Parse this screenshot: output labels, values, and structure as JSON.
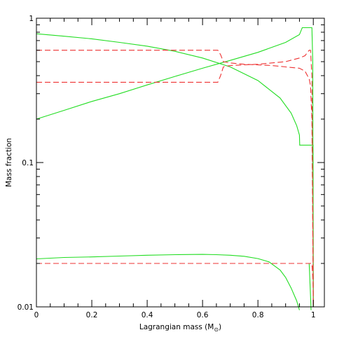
{
  "chart_data": {
    "type": "line",
    "title": "",
    "xlabel": "Lagrangian mass (M",
    "xlabel_sub": "⊙",
    "xlabel_close": ")",
    "ylabel": "Mass fraction",
    "xlim": [
      0,
      1.04
    ],
    "ylim": [
      0.01,
      1
    ],
    "yscale": "log",
    "grid": false,
    "legend": "none",
    "xticks": [
      0,
      0.2,
      0.4,
      0.6,
      0.8,
      1
    ],
    "xtick_labels": [
      "0",
      "0.2",
      "0.4",
      "0.6",
      "0.8",
      "1"
    ],
    "yticks": [
      0.01,
      0.1,
      1
    ],
    "ytick_labels": [
      "0.01",
      "0.1",
      "1"
    ],
    "series": [
      {
        "color": "#22dd22",
        "style": "solid",
        "x": [
          0.0,
          0.1,
          0.2,
          0.3,
          0.4,
          0.5,
          0.6,
          0.7,
          0.8,
          0.88,
          0.92,
          0.94,
          0.95,
          0.951,
          0.99,
          0.999,
          1.0
        ],
        "y": [
          0.78,
          0.75,
          0.72,
          0.68,
          0.64,
          0.59,
          0.53,
          0.46,
          0.37,
          0.28,
          0.22,
          0.18,
          0.155,
          0.132,
          0.132,
          0.132,
          0.01
        ]
      },
      {
        "color": "#22dd22",
        "style": "solid",
        "x": [
          0.0,
          0.1,
          0.2,
          0.3,
          0.4,
          0.5,
          0.6,
          0.7,
          0.8,
          0.9,
          0.95,
          0.96,
          0.995,
          0.998,
          1.0
        ],
        "y": [
          0.2,
          0.23,
          0.265,
          0.3,
          0.345,
          0.395,
          0.45,
          0.51,
          0.58,
          0.68,
          0.77,
          0.86,
          0.86,
          0.5,
          0.01
        ]
      },
      {
        "color": "#22dd22",
        "style": "solid",
        "x": [
          0.0,
          0.1,
          0.2,
          0.3,
          0.4,
          0.5,
          0.6,
          0.65,
          0.7,
          0.75,
          0.8,
          0.84,
          0.88,
          0.9,
          0.92,
          0.94,
          0.95
        ],
        "y": [
          0.0215,
          0.022,
          0.0222,
          0.0225,
          0.0228,
          0.023,
          0.0231,
          0.023,
          0.0228,
          0.0224,
          0.0216,
          0.0205,
          0.018,
          0.016,
          0.0135,
          0.011,
          0.0095
        ]
      },
      {
        "color": "#22dd22",
        "style": "solid",
        "x": [
          0.985,
          0.99,
          0.992
        ],
        "y": [
          0.02,
          0.012,
          0.0095
        ]
      },
      {
        "color": "#ee3333",
        "style": "dashed",
        "x": [
          0.0,
          0.2,
          0.4,
          0.6,
          0.655,
          0.665,
          0.675,
          0.7,
          0.75,
          0.8,
          0.85,
          0.9,
          0.95,
          0.97,
          0.985,
          0.99,
          0.995,
          1.0
        ],
        "y": [
          0.6,
          0.6,
          0.6,
          0.6,
          0.6,
          0.56,
          0.5,
          0.49,
          0.48,
          0.475,
          0.47,
          0.46,
          0.45,
          0.43,
          0.38,
          0.34,
          0.2,
          0.01
        ]
      },
      {
        "color": "#ee3333",
        "style": "dashed",
        "x": [
          0.0,
          0.2,
          0.4,
          0.6,
          0.655,
          0.665,
          0.675,
          0.7,
          0.75,
          0.8,
          0.85,
          0.9,
          0.95,
          0.97,
          0.985,
          0.99,
          0.995,
          1.0
        ],
        "y": [
          0.36,
          0.36,
          0.36,
          0.36,
          0.36,
          0.4,
          0.46,
          0.47,
          0.475,
          0.48,
          0.49,
          0.5,
          0.53,
          0.55,
          0.6,
          0.6,
          0.4,
          0.01
        ]
      },
      {
        "color": "#ee3333",
        "style": "dashed",
        "x": [
          0.0,
          0.2,
          0.4,
          0.6,
          0.8,
          0.9,
          0.95,
          0.995,
          0.999,
          1.0
        ],
        "y": [
          0.02,
          0.02,
          0.02,
          0.02,
          0.02,
          0.02,
          0.02,
          0.02,
          0.015,
          0.01
        ]
      }
    ]
  }
}
